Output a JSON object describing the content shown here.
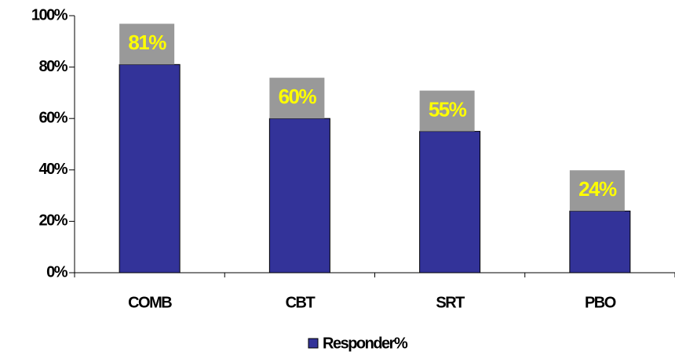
{
  "chart_data": {
    "type": "bar",
    "categories": [
      "COMB",
      "CBT",
      "SRT",
      "PBO"
    ],
    "series": [
      {
        "name": "Responder%",
        "color": "#333399",
        "values": [
          81,
          60,
          55,
          24
        ],
        "value_labels": [
          "81%",
          "60%",
          "55%",
          "24%"
        ]
      }
    ],
    "ylim": [
      0,
      100
    ],
    "yticks": [
      {
        "value": 0,
        "label": "0%"
      },
      {
        "value": 20,
        "label": "20%"
      },
      {
        "value": 40,
        "label": "40%"
      },
      {
        "value": 60,
        "label": "60%"
      },
      {
        "value": 80,
        "label": "80%"
      },
      {
        "value": 100,
        "label": "100%"
      }
    ],
    "grid": false,
    "legend": "bottom"
  }
}
